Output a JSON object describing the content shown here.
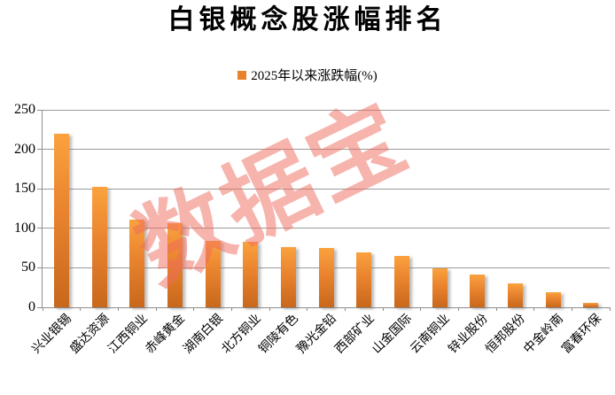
{
  "title": "白银概念股涨幅排名",
  "legend": {
    "label": "2025年以来涨跌幅(%)",
    "marker_color": "#E8822B"
  },
  "watermark": {
    "text": "数据宝",
    "color": "#EF6B5E"
  },
  "chart_data": {
    "type": "bar",
    "title": "白银概念股涨幅排名",
    "series_name": "2025年以来涨跌幅(%)",
    "categories": [
      "兴业银锡",
      "盛达资源",
      "江西铜业",
      "赤峰黄金",
      "湖南白银",
      "北方铜业",
      "铜陵有色",
      "豫光金铅",
      "西部矿业",
      "山金国际",
      "云南铜业",
      "锌业股份",
      "恒邦股份",
      "中金岭南",
      "富春环保"
    ],
    "values": [
      220,
      153,
      111,
      106,
      84,
      83,
      76,
      75,
      70,
      65,
      49,
      42,
      30,
      19,
      6
    ],
    "xlabel": "",
    "ylabel": "",
    "ylim": [
      0,
      250
    ],
    "yticks": [
      0,
      50,
      100,
      150,
      200,
      250
    ],
    "grid": true,
    "legend_position": "top-center",
    "bar_gradient_top": "#FAA23E",
    "bar_gradient_mid": "#E9832E",
    "bar_gradient_bottom": "#C8681C",
    "gridline_color": "#9B9B9B",
    "axis_color": "#8E8E8E",
    "text_color": "#000000"
  }
}
